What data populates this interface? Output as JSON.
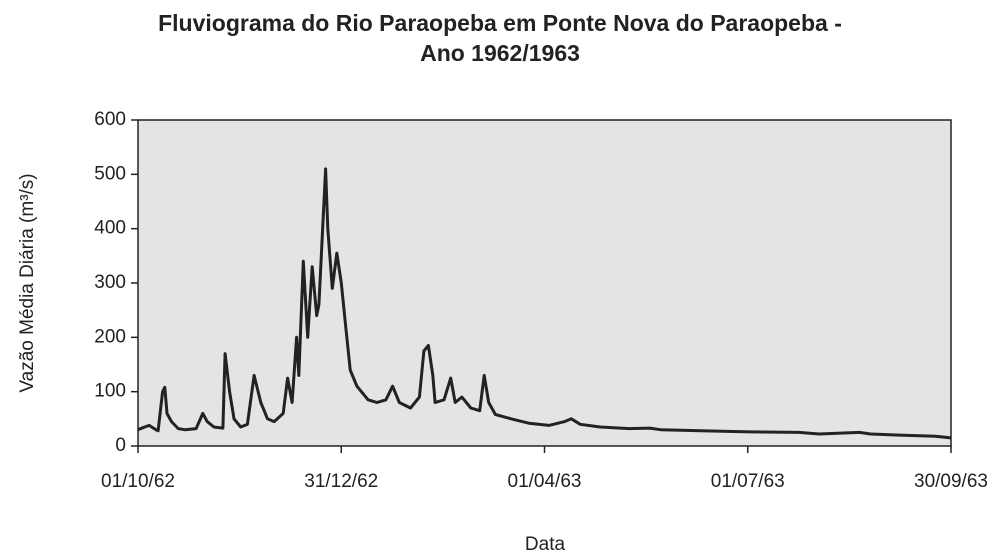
{
  "chart_data": {
    "type": "line",
    "title": "Fluviograma do Rio Paraopeba em Ponte Nova do Paraopeba - Ano 1962/1963",
    "x_label": "Data",
    "y_label": "Vazão Média Diária (m³/s)",
    "xlim": [
      "01/10/62",
      "30/09/63"
    ],
    "xticks": [
      "01/10/62",
      "31/12/62",
      "01/04/63",
      "01/07/63",
      "30/09/63"
    ],
    "ylim": [
      0,
      600
    ],
    "yticks": [
      0,
      100,
      200,
      300,
      400,
      500,
      600
    ],
    "grid": false,
    "x": [
      "01/10/62",
      "04/10/62",
      "06/10/62",
      "09/10/62",
      "10/10/62",
      "12/10/62",
      "13/10/62",
      "14/10/62",
      "16/10/62",
      "19/10/62",
      "22/10/62",
      "27/10/62",
      "30/10/62",
      "01/11/62",
      "04/11/62",
      "08/11/62",
      "09/11/62",
      "11/11/62",
      "13/11/62",
      "16/11/62",
      "19/11/62",
      "22/11/62",
      "25/11/62",
      "28/11/62",
      "01/12/62",
      "05/12/62",
      "07/12/62",
      "09/12/62",
      "11/12/62",
      "12/12/62",
      "14/12/62",
      "16/12/62",
      "18/12/62",
      "20/12/62",
      "21/12/62",
      "24/12/62",
      "25/12/62",
      "27/12/62",
      "29/12/62",
      "31/12/62",
      "02/01/63",
      "04/01/63",
      "07/01/63",
      "12/01/63",
      "16/01/63",
      "20/01/63",
      "23/01/63",
      "26/01/63",
      "31/01/63",
      "04/02/63",
      "06/02/63",
      "08/02/63",
      "10/02/63",
      "11/02/63",
      "15/02/63",
      "18/02/63",
      "20/02/63",
      "23/02/63",
      "27/02/63",
      "03/03/63",
      "05/03/63",
      "07/03/63",
      "10/03/63",
      "17/03/63",
      "25/03/63",
      "03/04/63",
      "10/04/63",
      "13/04/63",
      "17/04/63",
      "26/04/63",
      "09/05/63",
      "18/05/63",
      "23/05/63",
      "10/06/63",
      "02/07/63",
      "24/07/63",
      "02/08/63",
      "20/08/63",
      "25/08/63",
      "07/09/63",
      "23/09/63",
      "30/09/63"
    ],
    "series": [
      {
        "color": "#222222",
        "values": [
          30,
          35,
          38,
          30,
          28,
          100,
          108,
          60,
          45,
          32,
          30,
          32,
          60,
          45,
          35,
          33,
          170,
          100,
          50,
          35,
          40,
          130,
          80,
          50,
          45,
          60,
          125,
          80,
          200,
          130,
          340,
          200,
          330,
          240,
          260,
          510,
          400,
          290,
          355,
          300,
          220,
          140,
          110,
          85,
          80,
          85,
          110,
          80,
          70,
          90,
          175,
          185,
          130,
          80,
          85,
          125,
          80,
          90,
          70,
          65,
          130,
          80,
          58,
          50,
          42,
          38,
          45,
          50,
          40,
          35,
          32,
          33,
          30,
          28,
          26,
          25,
          22,
          25,
          22,
          20,
          18,
          15
        ]
      }
    ]
  }
}
